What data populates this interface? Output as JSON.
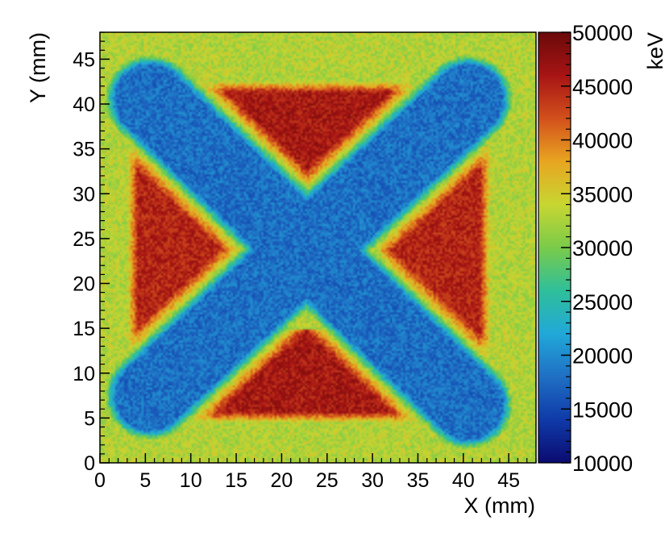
{
  "chart_data": {
    "type": "heatmap",
    "title": "",
    "xlabel": "X (mm)",
    "ylabel": "Y (mm)",
    "zlabel": "keV",
    "xlim": [
      0,
      48
    ],
    "ylim": [
      0,
      48
    ],
    "zlim": [
      10000,
      50000
    ],
    "x_ticks": [
      "0",
      "5",
      "10",
      "15",
      "20",
      "25",
      "30",
      "35",
      "40",
      "45"
    ],
    "y_ticks": [
      "0",
      "5",
      "10",
      "15",
      "20",
      "25",
      "30",
      "35",
      "40",
      "45"
    ],
    "z_ticks": [
      "10000",
      "15000",
      "20000",
      "25000",
      "30000",
      "35000",
      "40000",
      "45000",
      "50000"
    ],
    "x_tick_values": [
      0,
      5,
      10,
      15,
      20,
      25,
      30,
      35,
      40,
      45
    ],
    "y_tick_values": [
      0,
      5,
      10,
      15,
      20,
      25,
      30,
      35,
      40,
      45
    ],
    "z_tick_values": [
      10000,
      15000,
      20000,
      25000,
      30000,
      35000,
      40000,
      45000,
      50000
    ],
    "grid": false,
    "colormap": "rainbow",
    "palette_colors": [
      "#0b0b70",
      "#0f3aa8",
      "#1f6fc4",
      "#21a8d8",
      "#2fbf9a",
      "#7acb4a",
      "#c7d631",
      "#e8a521",
      "#d2501c",
      "#a71414",
      "#6b0a0a"
    ],
    "bins": [
      200,
      200
    ],
    "regions": [
      {
        "name": "background plate",
        "value": 33000
      },
      {
        "name": "X-shaped cross (two diagonal bars, ~7 mm wide, centered at 23,23)",
        "value": 18000
      },
      {
        "name": "top triangle (apex ~23,30)",
        "value": 46000
      },
      {
        "name": "bottom triangle (apex ~23,16)",
        "value": 46000
      },
      {
        "name": "left triangle (apex ~16,23)",
        "value": 45000
      },
      {
        "name": "right triangle (apex ~31,23)",
        "value": 45000
      }
    ]
  }
}
